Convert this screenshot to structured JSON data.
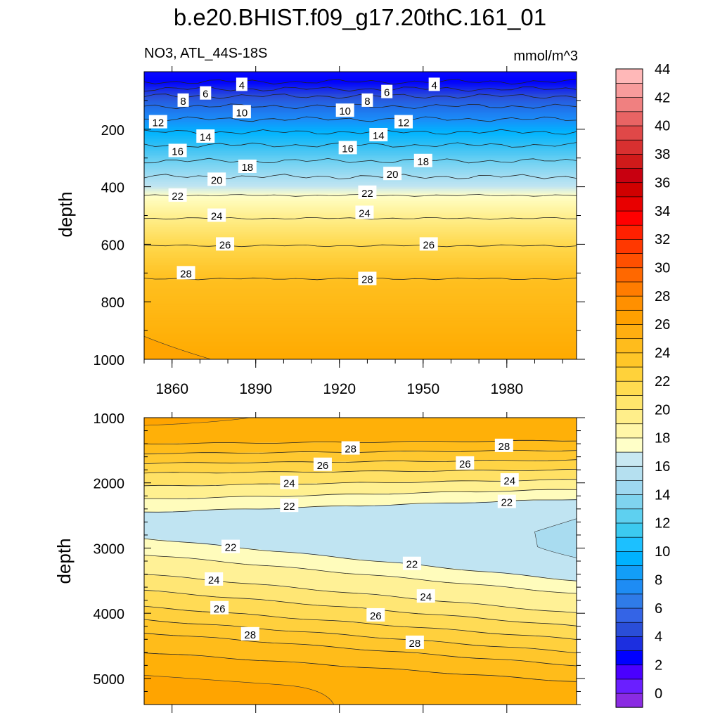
{
  "chart_data": {
    "type": "contour",
    "title": "b.e20.BHIST.f09_g17.20thC.161_01",
    "subtitle_left": "NO3, ATL_44S-18S",
    "subtitle_right": "mmol/m^3",
    "ylabel": "depth",
    "xlim": [
      1850,
      2005
    ],
    "x_ticks": [
      "1860",
      "1890",
      "1920",
      "1950",
      "1980"
    ],
    "panels": [
      {
        "name": "upper",
        "ylim": [
          0,
          1000
        ],
        "y_ticks": [
          "200",
          "400",
          "600",
          "800",
          "1000"
        ],
        "contour_levels": [
          4,
          6,
          8,
          10,
          12,
          14,
          16,
          18,
          20,
          22,
          24,
          26,
          28
        ],
        "contours": [
          {
            "value": 4,
            "depth": 35
          },
          {
            "value": 6,
            "depth": 60
          },
          {
            "value": 8,
            "depth": 85
          },
          {
            "value": 10,
            "depth": 120
          },
          {
            "value": 12,
            "depth": 165
          },
          {
            "value": 14,
            "depth": 210
          },
          {
            "value": 16,
            "depth": 255
          },
          {
            "value": 18,
            "depth": 310
          },
          {
            "value": 20,
            "depth": 365
          },
          {
            "value": 22,
            "depth": 430
          },
          {
            "value": 24,
            "depth": 510
          },
          {
            "value": 26,
            "depth": 605
          },
          {
            "value": 28,
            "depth": 720
          }
        ],
        "labels": [
          {
            "text": "4",
            "year": 1885,
            "depth": 45
          },
          {
            "text": "6",
            "year": 1872,
            "depth": 75
          },
          {
            "text": "8",
            "year": 1864,
            "depth": 100
          },
          {
            "text": "10",
            "year": 1885,
            "depth": 140
          },
          {
            "text": "12",
            "year": 1855,
            "depth": 175
          },
          {
            "text": "14",
            "year": 1872,
            "depth": 225
          },
          {
            "text": "16",
            "year": 1862,
            "depth": 275
          },
          {
            "text": "18",
            "year": 1887,
            "depth": 330
          },
          {
            "text": "20",
            "year": 1876,
            "depth": 375
          },
          {
            "text": "22",
            "year": 1862,
            "depth": 430
          },
          {
            "text": "24",
            "year": 1876,
            "depth": 500
          },
          {
            "text": "26",
            "year": 1879,
            "depth": 600
          },
          {
            "text": "28",
            "year": 1865,
            "depth": 700
          },
          {
            "text": "4",
            "year": 1954,
            "depth": 45
          },
          {
            "text": "6",
            "year": 1937,
            "depth": 70
          },
          {
            "text": "8",
            "year": 1930,
            "depth": 100
          },
          {
            "text": "10",
            "year": 1922,
            "depth": 135
          },
          {
            "text": "12",
            "year": 1943,
            "depth": 175
          },
          {
            "text": "14",
            "year": 1934,
            "depth": 220
          },
          {
            "text": "16",
            "year": 1923,
            "depth": 265
          },
          {
            "text": "18",
            "year": 1950,
            "depth": 310
          },
          {
            "text": "20",
            "year": 1939,
            "depth": 355
          },
          {
            "text": "22",
            "year": 1930,
            "depth": 420
          },
          {
            "text": "24",
            "year": 1929,
            "depth": 490
          },
          {
            "text": "26",
            "year": 1952,
            "depth": 600
          },
          {
            "text": "28",
            "year": 1930,
            "depth": 720
          }
        ]
      },
      {
        "name": "lower",
        "ylim": [
          1000,
          5400
        ],
        "y_ticks": [
          "1000",
          "2000",
          "3000",
          "4000",
          "5000"
        ],
        "contour_levels": [
          28,
          26,
          24,
          22,
          22,
          24,
          26,
          28
        ],
        "contours": [
          {
            "value": 28,
            "depth_start": 1400,
            "depth_end": 1350
          },
          {
            "value": 26,
            "depth_start": 1700,
            "depth_end": 1650
          },
          {
            "value": 24,
            "depth_start": 2050,
            "depth_end": 1950
          },
          {
            "value": 22,
            "depth_start": 2450,
            "depth_end": 2250
          },
          {
            "value": 22,
            "depth_start": 2850,
            "depth_end": 3500
          },
          {
            "value": 24,
            "depth_start": 3400,
            "depth_end": 4000
          },
          {
            "value": 26,
            "depth_start": 3900,
            "depth_end": 4400
          },
          {
            "value": 28,
            "depth_start": 4300,
            "depth_end": 4800
          }
        ],
        "labels": [
          {
            "text": "28",
            "year": 1924,
            "depth": 1470
          },
          {
            "text": "28",
            "year": 1979,
            "depth": 1430
          },
          {
            "text": "26",
            "year": 1914,
            "depth": 1720
          },
          {
            "text": "26",
            "year": 1965,
            "depth": 1700
          },
          {
            "text": "24",
            "year": 1902,
            "depth": 2000
          },
          {
            "text": "24",
            "year": 1981,
            "depth": 1960
          },
          {
            "text": "22",
            "year": 1902,
            "depth": 2350
          },
          {
            "text": "22",
            "year": 1980,
            "depth": 2290
          },
          {
            "text": "22",
            "year": 1881,
            "depth": 2980
          },
          {
            "text": "22",
            "year": 1946,
            "depth": 3240
          },
          {
            "text": "24",
            "year": 1875,
            "depth": 3480
          },
          {
            "text": "24",
            "year": 1951,
            "depth": 3740
          },
          {
            "text": "26",
            "year": 1877,
            "depth": 3920
          },
          {
            "text": "26",
            "year": 1933,
            "depth": 4030
          },
          {
            "text": "28",
            "year": 1888,
            "depth": 4320
          },
          {
            "text": "28",
            "year": 1947,
            "depth": 4450
          }
        ]
      }
    ],
    "colorbar": {
      "labels": [
        "0",
        "2",
        "4",
        "6",
        "8",
        "10",
        "12",
        "14",
        "16",
        "18",
        "20",
        "22",
        "24",
        "26",
        "28",
        "30",
        "32",
        "34",
        "36",
        "38",
        "40",
        "42",
        "44"
      ],
      "colors": [
        "#8a2be2",
        "#6a1fff",
        "#4a00ff",
        "#0000ff",
        "#1c2fe0",
        "#2a4ed8",
        "#3464e6",
        "#2f7be8",
        "#1e8cf4",
        "#129ef8",
        "#00b2ff",
        "#1cc0ff",
        "#3ccaf0",
        "#5ed0f0",
        "#7fd4ef",
        "#9ed8f0",
        "#b5e0f0",
        "#c8e8f2",
        "#ffffc8",
        "#fff6a8",
        "#ffee8a",
        "#ffe66c",
        "#ffdc50",
        "#ffd23a",
        "#ffc628",
        "#ffbc1c",
        "#ffae10",
        "#ffa000",
        "#ff9000",
        "#ff7c00",
        "#ff6800",
        "#ff5000",
        "#ff3800",
        "#ff2000",
        "#ff0000",
        "#e80000",
        "#d00000",
        "#c80010",
        "#d01a1a",
        "#d83030",
        "#e04848",
        "#e86464",
        "#f08080",
        "#f89c9c",
        "#ffb8b8"
      ]
    }
  }
}
